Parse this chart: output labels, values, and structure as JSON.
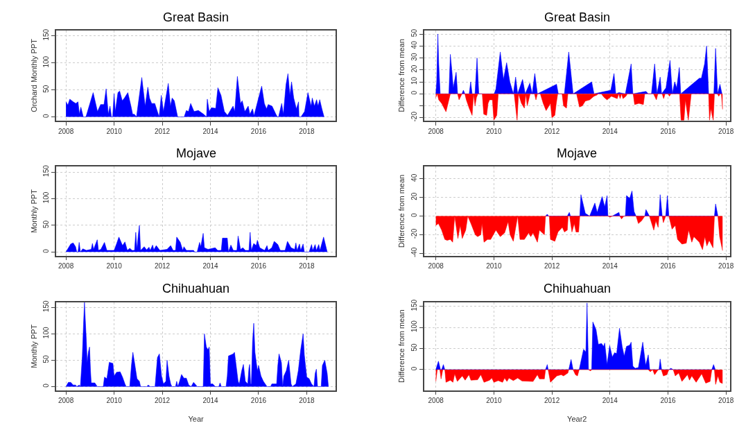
{
  "chart_data": [
    {
      "type": "area",
      "title": "Great Basin",
      "ylabel": "Orchard Monthly PPT",
      "xlim": [
        2007.6,
        2019.2
      ],
      "xticks": [
        2008,
        2010,
        2012,
        2014,
        2016,
        2018
      ],
      "ylim": [
        -7,
        160
      ],
      "yticks": [
        0,
        50,
        100,
        150
      ],
      "grid": true,
      "series": [
        {
          "color": "#0000ff",
          "x": [
            2008.0,
            2008.08,
            2008.16,
            2008.3,
            2008.41,
            2008.5,
            2008.56,
            2008.62,
            2008.72,
            2008.83,
            2009.13,
            2009.31,
            2009.44,
            2009.58,
            2009.67,
            2009.76,
            2009.83,
            2009.89,
            2009.94,
            2010.0,
            2010.05,
            2010.16,
            2010.23,
            2010.34,
            2010.43,
            2010.57,
            2010.7,
            2010.77,
            2010.84,
            2010.93,
            2011.15,
            2011.29,
            2011.4,
            2011.47,
            2011.56,
            2011.69,
            2011.87,
            2011.96,
            2012.05,
            2012.25,
            2012.34,
            2012.41,
            2012.5,
            2012.64,
            2012.91,
            2013.0,
            2013.09,
            2013.18,
            2013.32,
            2013.5,
            2013.72,
            2013.84,
            2013.87,
            2013.95,
            2014.04,
            2014.22,
            2014.31,
            2014.44,
            2014.58,
            2014.71,
            2014.94,
            2015.01,
            2015.12,
            2015.25,
            2015.32,
            2015.43,
            2015.57,
            2015.64,
            2015.75,
            2015.81,
            2015.97,
            2016.13,
            2016.24,
            2016.33,
            2016.4,
            2016.56,
            2016.72,
            2016.78,
            2016.83,
            2016.96,
            2017.03,
            2017.14,
            2017.22,
            2017.3,
            2017.37,
            2017.46,
            2017.57,
            2017.66,
            2017.68,
            2017.76,
            2017.91,
            2018.05,
            2018.18,
            2018.23,
            2018.32,
            2018.41,
            2018.47,
            2018.54,
            2018.63,
            2018.72
          ],
          "values": [
            28,
            22,
            33,
            28,
            25,
            28,
            5,
            18,
            0,
            0,
            45,
            10,
            23,
            23,
            52,
            5,
            20,
            0,
            0,
            43,
            10,
            45,
            48,
            30,
            35,
            45,
            20,
            5,
            5,
            0,
            73,
            20,
            55,
            35,
            25,
            25,
            0,
            40,
            10,
            62,
            20,
            35,
            30,
            0,
            0,
            12,
            10,
            25,
            10,
            12,
            5,
            0,
            33,
            10,
            17,
            16,
            54,
            40,
            10,
            3,
            20,
            10,
            75,
            25,
            30,
            10,
            20,
            5,
            15,
            2,
            30,
            57,
            25,
            15,
            23,
            20,
            5,
            0,
            0,
            25,
            5,
            60,
            80,
            40,
            65,
            35,
            15,
            28,
            0,
            0,
            10,
            45,
            20,
            35,
            20,
            32,
            20,
            32,
            15,
            0
          ]
        }
      ]
    },
    {
      "type": "area",
      "title": "Great Basin",
      "ylabel": "Difference from mean",
      "xlim": [
        2007.6,
        2018.13
      ],
      "xticks": [
        2008,
        2010,
        2012,
        2014,
        2016,
        2018
      ],
      "ylim": [
        -22.5,
        53
      ],
      "yticks": [
        -20,
        {
          "value": -10,
          "label": null
        },
        0,
        10,
        20,
        30,
        40,
        50
      ],
      "grid": true,
      "series": [
        {
          "color": "#0000ff",
          "x": [
            2008.0,
            2008.03,
            2008.07,
            2008.1,
            2008.15,
            2008.45,
            2008.5,
            2008.55,
            2008.6,
            2008.7,
            2008.75,
            2008.9,
            2008.95,
            2009.0,
            2009.15,
            2009.2,
            2009.25,
            2009.35,
            2009.42,
            2009.48,
            2010.01,
            2010.07,
            2010.22,
            2010.33,
            2010.44,
            2010.55,
            2010.67,
            2010.75,
            2010.82,
            2010.99,
            2011.08,
            2011.24,
            2011.32,
            2011.41,
            2011.5,
            2012.16,
            2012.22,
            2012.43,
            2012.58,
            2012.73,
            2013.37,
            2013.45,
            2014.03,
            2014.14,
            2014.2,
            2014.31,
            2014.53,
            2014.73,
            2014.79,
            2015.24,
            2015.32,
            2015.43,
            2015.54,
            2015.62,
            2015.73,
            2015.78,
            2015.93,
            2016.07,
            2016.15,
            2016.23,
            2016.3,
            2016.39,
            2016.44,
            2016.93,
            2017.08,
            2017.15,
            2017.26,
            2017.33,
            2017.4,
            2017.58,
            2017.64,
            2017.71,
            2017.79,
            2017.86
          ],
          "values": [
            0,
            10,
            50,
            25,
            0,
            0,
            33,
            20,
            5,
            18,
            0,
            0,
            3,
            0,
            0,
            10,
            0,
            0,
            30,
            0,
            0,
            4,
            35,
            12,
            26,
            10,
            0,
            14,
            0,
            12,
            0,
            9,
            0,
            17,
            0,
            8,
            0,
            0,
            35,
            0,
            10,
            0,
            3,
            17,
            0,
            1,
            0,
            25,
            0,
            2,
            0,
            0,
            25,
            0,
            14,
            0,
            5,
            28,
            0,
            10,
            5,
            22,
            0,
            10,
            13,
            13,
            25,
            40,
            0,
            0,
            38,
            0,
            8,
            0
          ]
        },
        {
          "color": "#ff0000",
          "x": [
            2008.0,
            2008.05,
            2008.1,
            2008.2,
            2008.35,
            2008.45,
            2008.5,
            2008.75,
            2008.8,
            2008.9,
            2009.0,
            2009.05,
            2009.15,
            2009.25,
            2009.3,
            2009.35,
            2009.4,
            2009.45,
            2009.6,
            2009.65,
            2009.75,
            2009.8,
            2009.85,
            2009.95,
            2010.0,
            2010.1,
            2010.15,
            2010.7,
            2010.8,
            2010.85,
            2010.95,
            2011.05,
            2011.1,
            2011.15,
            2011.2,
            2011.25,
            2011.4,
            2011.45,
            2011.5,
            2011.6,
            2011.7,
            2011.8,
            2011.95,
            2012.0,
            2012.1,
            2012.15,
            2012.2,
            2012.35,
            2012.4,
            2012.5,
            2012.55,
            2012.85,
            2012.95,
            2013.05,
            2013.15,
            2013.3,
            2013.45,
            2013.55,
            2013.6,
            2013.7,
            2013.8,
            2013.9,
            2014.05,
            2014.15,
            2014.25,
            2014.3,
            2014.35,
            2014.4,
            2014.45,
            2014.55,
            2014.6,
            2014.8,
            2014.85,
            2015.0,
            2015.15,
            2015.2,
            2015.5,
            2015.6,
            2015.65,
            2015.8,
            2015.85,
            2015.9,
            2016.0,
            2016.05,
            2016.1,
            2016.4,
            2016.45,
            2016.55,
            2016.6,
            2016.7,
            2016.8,
            2017.4,
            2017.43,
            2017.48,
            2017.52,
            2017.56,
            2017.6,
            2017.7,
            2017.75,
            2017.8,
            2017.84,
            2017.88
          ],
          "values": [
            -3,
            0,
            -5,
            -8,
            -15,
            -5,
            0,
            0,
            -5,
            0,
            0,
            -5,
            -12,
            -18,
            0,
            -10,
            -3,
            0,
            0,
            -17,
            -18,
            -8,
            -5,
            -5,
            -22,
            -18,
            0,
            0,
            -22,
            0,
            -8,
            -12,
            0,
            -10,
            -5,
            0,
            0,
            -5,
            0,
            0,
            -8,
            -14,
            -8,
            -20,
            -18,
            -8,
            0,
            0,
            -10,
            -12,
            0,
            0,
            -11,
            -10,
            -6,
            -5,
            -2,
            -1,
            0,
            0,
            -3,
            -5,
            -2,
            -3,
            -4,
            0,
            -4,
            0,
            -4,
            -2,
            0,
            0,
            -9,
            -8,
            -9,
            0,
            0,
            -5,
            0,
            0,
            -4,
            0,
            0,
            -2,
            0,
            0,
            -22,
            -22,
            -5,
            -22,
            0,
            0,
            -22,
            -12,
            -18,
            -22,
            0,
            0,
            -2,
            0,
            0,
            -13
          ]
        }
      ]
    },
    {
      "type": "area",
      "title": "Mojave",
      "ylabel": "Monthly PPT",
      "xlim": [
        2007.6,
        2019.2
      ],
      "xticks": [
        2008,
        2010,
        2012,
        2014,
        2016,
        2018
      ],
      "ylim": [
        -7,
        160
      ],
      "yticks": [
        0,
        50,
        100,
        150
      ],
      "grid": true,
      "series": [
        {
          "color": "#0000ff",
          "x": [
            2008.0,
            2008.2,
            2008.3,
            2008.4,
            2008.45,
            2008.5,
            2008.55,
            2008.6,
            2008.7,
            2008.85,
            2009.05,
            2009.1,
            2009.15,
            2009.3,
            2009.35,
            2009.45,
            2009.6,
            2009.7,
            2010.0,
            2010.1,
            2010.2,
            2010.35,
            2010.45,
            2010.55,
            2010.65,
            2010.75,
            2010.85,
            2010.9,
            2010.95,
            2011.0,
            2011.05,
            2011.1,
            2011.25,
            2011.35,
            2011.45,
            2011.5,
            2011.6,
            2011.65,
            2011.75,
            2011.9,
            2012.2,
            2012.35,
            2012.45,
            2012.55,
            2012.6,
            2012.75,
            2012.85,
            2012.9,
            2013.0,
            2013.3,
            2013.35,
            2013.45,
            2013.55,
            2013.6,
            2013.7,
            2013.75,
            2013.9,
            2014.2,
            2014.3,
            2014.45,
            2014.5,
            2014.7,
            2014.75,
            2014.85,
            2014.95,
            2015.1,
            2015.15,
            2015.25,
            2015.35,
            2015.45,
            2015.6,
            2015.65,
            2015.7,
            2015.8,
            2015.9,
            2015.95,
            2016.05,
            2016.25,
            2016.35,
            2016.4,
            2016.55,
            2016.65,
            2016.8,
            2016.9,
            2017.1,
            2017.2,
            2017.35,
            2017.5,
            2017.55,
            2017.6,
            2017.7,
            2017.75,
            2017.85,
            2017.9,
            2018.1,
            2018.2,
            2018.25,
            2018.35,
            2018.4,
            2018.5,
            2018.55,
            2018.7,
            2018.85
          ],
          "values": [
            0,
            15,
            17,
            10,
            0,
            0,
            18,
            0,
            6,
            3,
            5,
            16,
            5,
            23,
            3,
            5,
            18,
            3,
            3,
            15,
            28,
            12,
            19,
            3,
            7,
            3,
            3,
            37,
            5,
            30,
            50,
            3,
            10,
            4,
            9,
            3,
            13,
            4,
            12,
            3,
            5,
            12,
            3,
            3,
            28,
            18,
            3,
            10,
            3,
            3,
            0,
            0,
            18,
            10,
            35,
            8,
            5,
            8,
            3,
            3,
            26,
            26,
            0,
            13,
            3,
            3,
            30,
            5,
            8,
            3,
            3,
            37,
            3,
            16,
            12,
            22,
            8,
            3,
            12,
            3,
            8,
            20,
            14,
            3,
            3,
            20,
            8,
            5,
            17,
            3,
            15,
            3,
            15,
            0,
            0,
            14,
            3,
            14,
            3,
            14,
            3,
            28,
            0
          ]
        }
      ]
    },
    {
      "type": "area",
      "title": "Mojave",
      "ylabel": "Difference from mean",
      "xlim": [
        2007.6,
        2018.13
      ],
      "xticks": [
        2008,
        2010,
        2012,
        2014,
        2016,
        2018
      ],
      "ylim": [
        -42.5,
        53
      ],
      "yticks": [
        -40,
        -20,
        0,
        20,
        40
      ],
      "grid": true,
      "series": [
        {
          "color": "#0000ff",
          "x": [
            2011.78,
            2011.84,
            2011.89,
            2012.53,
            2012.6,
            2012.64,
            2012.96,
            2013.0,
            2013.15,
            2013.3,
            2013.48,
            2013.56,
            2013.73,
            2013.82,
            2013.9,
            2013.93,
            2014.08,
            2014.31,
            2014.34,
            2014.53,
            2014.57,
            2014.68,
            2014.76,
            2014.83,
            2014.9,
            2015.2,
            2015.24,
            2015.36,
            2015.69,
            2015.73,
            2015.8,
            2015.92,
            2015.98,
            2016.03,
            2017.6,
            2017.64,
            2017.72
          ],
          "values": [
            0,
            2,
            0,
            0,
            4,
            0,
            0,
            23,
            3,
            0,
            14,
            4,
            21,
            10,
            22,
            0,
            0,
            4,
            0,
            0,
            22,
            19,
            27,
            5,
            0,
            0,
            7,
            0,
            0,
            23,
            0,
            0,
            22,
            0,
            0,
            13,
            0
          ]
        },
        {
          "color": "#ff0000",
          "x": [
            2008.0,
            2008.09,
            2008.2,
            2008.31,
            2008.39,
            2008.5,
            2008.58,
            2008.65,
            2008.76,
            2008.84,
            2008.91,
            2009.03,
            2009.1,
            2009.21,
            2009.36,
            2009.44,
            2009.55,
            2009.59,
            2009.66,
            2009.78,
            2009.89,
            2010.07,
            2010.22,
            2010.37,
            2010.49,
            2010.56,
            2010.67,
            2010.82,
            2010.9,
            2011.05,
            2011.2,
            2011.27,
            2011.35,
            2011.5,
            2011.57,
            2011.74,
            2011.78,
            2011.91,
            2011.95,
            2012.1,
            2012.21,
            2012.36,
            2012.43,
            2012.53,
            2012.56,
            2012.61,
            2012.69,
            2012.77,
            2012.83,
            2012.92,
            2012.96,
            2013.93,
            2014.01,
            2014.08,
            2014.34,
            2014.4,
            2014.48,
            2014.9,
            2014.98,
            2015.09,
            2015.2,
            2015.36,
            2015.51,
            2015.58,
            2015.66,
            2015.69,
            2015.8,
            2015.84,
            2015.92,
            2016.03,
            2016.14,
            2016.25,
            2016.33,
            2016.48,
            2016.63,
            2016.71,
            2016.82,
            2016.89,
            2017.08,
            2017.19,
            2017.27,
            2017.34,
            2017.42,
            2017.55,
            2017.6,
            2017.72,
            2017.78,
            2017.88
          ],
          "values": [
            -10,
            -8,
            -15,
            -25,
            -26,
            -25,
            -28,
            0,
            -24,
            -10,
            -24,
            -15,
            0,
            -8,
            -20,
            -22,
            -20,
            -8,
            -28,
            -25,
            -25,
            -15,
            -22,
            -18,
            -6,
            -20,
            -27,
            0,
            -25,
            -25,
            -18,
            -22,
            -18,
            -28,
            -15,
            -20,
            0,
            0,
            -25,
            -27,
            -17,
            -12,
            -17,
            -15,
            0,
            0,
            -17,
            -8,
            -17,
            -17,
            0,
            0,
            -1,
            0,
            0,
            -3,
            0,
            0,
            -8,
            -5,
            0,
            0,
            -15,
            -5,
            -12,
            0,
            0,
            -7,
            0,
            0,
            -14,
            -10,
            -25,
            -30,
            -29,
            -15,
            -28,
            -22,
            -28,
            -36,
            -22,
            -32,
            -26,
            -34,
            0,
            0,
            -22,
            -37
          ]
        }
      ]
    },
    {
      "type": "area",
      "title": "Chihuahuan",
      "xlabel": "Year",
      "ylabel": "Monthly PPT",
      "xlim": [
        2007.6,
        2019.2
      ],
      "xticks": [
        2008,
        2010,
        2012,
        2014,
        2016,
        2018
      ],
      "ylim": [
        -7,
        160
      ],
      "yticks": [
        0,
        50,
        100,
        150
      ],
      "grid": true,
      "series": [
        {
          "color": "#0000ff",
          "x": [
            2008.0,
            2008.1,
            2008.2,
            2008.3,
            2008.4,
            2008.45,
            2008.55,
            2008.6,
            2008.68,
            2008.73,
            2008.77,
            2008.8,
            2008.85,
            2008.88,
            2008.93,
            2008.98,
            2009.02,
            2009.05,
            2009.2,
            2009.3,
            2009.55,
            2009.6,
            2009.7,
            2009.8,
            2009.95,
            2010.0,
            2010.1,
            2010.25,
            2010.35,
            2010.45,
            2010.5,
            2010.65,
            2010.72,
            2010.78,
            2010.85,
            2010.95,
            2011.05,
            2011.1,
            2011.35,
            2011.42,
            2011.5,
            2011.7,
            2011.8,
            2011.88,
            2011.97,
            2012.05,
            2012.15,
            2012.2,
            2012.28,
            2012.35,
            2012.4,
            2012.55,
            2012.6,
            2012.65,
            2012.72,
            2012.8,
            2012.9,
            2013.0,
            2013.1,
            2013.2,
            2013.3,
            2013.4,
            2013.45,
            2013.7,
            2013.72,
            2013.75,
            2013.83,
            2013.9,
            2013.95,
            2014.0,
            2014.1,
            2014.2,
            2014.35,
            2014.4,
            2014.45,
            2014.65,
            2014.7,
            2014.75,
            2014.95,
            2015.0,
            2015.15,
            2015.2,
            2015.3,
            2015.37,
            2015.45,
            2015.55,
            2015.6,
            2015.63,
            2015.67,
            2015.7,
            2015.75,
            2015.8,
            2015.85,
            2015.95,
            2016.0,
            2016.1,
            2016.2,
            2016.35,
            2016.5,
            2016.55,
            2016.75,
            2016.8,
            2016.85,
            2016.95,
            2017.0,
            2017.05,
            2017.15,
            2017.25,
            2017.35,
            2017.4,
            2017.55,
            2017.65,
            2017.75,
            2017.85,
            2017.9,
            2018.0,
            2018.1,
            2018.2,
            2018.3,
            2018.35,
            2018.4,
            2018.45,
            2018.6,
            2018.65,
            2018.75,
            2018.85,
            2018.9
          ],
          "values": [
            0,
            8,
            8,
            3,
            3,
            0,
            3,
            0,
            58,
            118,
            160,
            130,
            85,
            45,
            65,
            75,
            30,
            7,
            7,
            0,
            0,
            18,
            15,
            46,
            44,
            20,
            27,
            28,
            18,
            5,
            0,
            0,
            40,
            65,
            45,
            15,
            10,
            0,
            0,
            3,
            0,
            0,
            55,
            62,
            20,
            5,
            10,
            50,
            20,
            5,
            0,
            0,
            10,
            0,
            10,
            23,
            16,
            16,
            3,
            0,
            8,
            3,
            0,
            0,
            35,
            100,
            75,
            70,
            75,
            5,
            5,
            0,
            0,
            7,
            0,
            0,
            20,
            58,
            62,
            65,
            10,
            5,
            30,
            42,
            10,
            5,
            35,
            42,
            5,
            5,
            85,
            120,
            65,
            30,
            40,
            20,
            10,
            0,
            0,
            5,
            5,
            40,
            62,
            45,
            0,
            20,
            30,
            50,
            5,
            0,
            5,
            30,
            70,
            100,
            60,
            18,
            15,
            5,
            0,
            25,
            33,
            0,
            0,
            40,
            50,
            25,
            0
          ]
        }
      ]
    },
    {
      "type": "area",
      "title": "Chihuahuan",
      "xlabel": "Year2",
      "ylabel": "Difference from mean",
      "xlim": [
        2007.6,
        2018.13
      ],
      "xticks": [
        2008,
        2010,
        2012,
        2014,
        2016,
        2018
      ],
      "ylim": [
        -49,
        160
      ],
      "yticks": [
        0,
        50,
        100,
        150
      ],
      "grid": true,
      "series": [
        {
          "color": "#0000ff",
          "x": [
            2008.0,
            2008.09,
            2008.16,
            2008.2,
            2008.26,
            2008.31,
            2011.78,
            2011.84,
            2011.87,
            2012.58,
            2012.66,
            2012.73,
            2012.94,
            2013.09,
            2013.17,
            2013.21,
            2013.26,
            2013.37,
            2013.41,
            2013.52,
            2013.6,
            2013.71,
            2013.78,
            2013.82,
            2013.9,
            2013.99,
            2014.08,
            2014.16,
            2014.23,
            2014.33,
            2014.42,
            2014.49,
            2014.57,
            2014.68,
            2014.73,
            2014.79,
            2014.87,
            2014.98,
            2015.13,
            2015.23,
            2015.32,
            2015.37,
            2015.69,
            2015.73,
            2015.78,
            2016.03,
            2016.1,
            2016.18,
            2017.51,
            2017.57,
            2017.63
          ],
          "values": [
            0,
            20,
            0,
            0,
            12,
            0,
            0,
            12,
            0,
            0,
            24,
            0,
            0,
            48,
            42,
            158,
            0,
            0,
            113,
            95,
            60,
            62,
            55,
            63,
            12,
            57,
            30,
            40,
            38,
            98,
            55,
            32,
            55,
            58,
            65,
            8,
            3,
            5,
            65,
            10,
            35,
            0,
            0,
            25,
            0,
            0,
            3,
            0,
            0,
            12,
            0
          ]
        },
        {
          "color": "#ff0000",
          "x": [
            2008.0,
            2008.05,
            2008.14,
            2008.18,
            2008.24,
            2008.31,
            2008.35,
            2008.5,
            2008.59,
            2008.65,
            2008.74,
            2008.91,
            2009.01,
            2009.14,
            2009.21,
            2009.44,
            2009.55,
            2009.66,
            2009.85,
            2009.93,
            2010.0,
            2010.15,
            2010.3,
            2010.37,
            2010.45,
            2010.52,
            2010.67,
            2010.82,
            2010.97,
            2011.35,
            2011.5,
            2011.57,
            2011.74,
            2011.78,
            2011.87,
            2011.95,
            2012.17,
            2012.32,
            2012.4,
            2012.55,
            2012.58,
            2012.73,
            2012.81,
            2012.88,
            2012.94,
            2013.26,
            2013.33,
            2013.37,
            2015.32,
            2015.39,
            2015.47,
            2015.54,
            2015.66,
            2015.77,
            2015.84,
            2015.96,
            2016.03,
            2016.18,
            2016.25,
            2016.37,
            2016.48,
            2016.67,
            2016.74,
            2016.82,
            2016.97,
            2017.16,
            2017.3,
            2017.45,
            2017.51,
            2017.6,
            2017.64,
            2017.72,
            2017.79,
            2017.88
          ],
          "values": [
            -28,
            0,
            0,
            -22,
            0,
            0,
            -30,
            -25,
            -30,
            -10,
            -28,
            -15,
            -25,
            -12,
            -25,
            -24,
            -12,
            -30,
            -25,
            -20,
            -30,
            -26,
            -30,
            -20,
            -28,
            -20,
            -26,
            -20,
            -27,
            -28,
            -12,
            -22,
            -22,
            0,
            0,
            -30,
            -15,
            -12,
            -15,
            -8,
            0,
            0,
            -12,
            -15,
            0,
            0,
            -3,
            0,
            0,
            -5,
            0,
            -12,
            0,
            0,
            -15,
            -12,
            0,
            0,
            -15,
            -8,
            -28,
            -12,
            -25,
            -15,
            -30,
            -10,
            -32,
            -28,
            0,
            0,
            -35,
            -15,
            -30,
            -33
          ]
        }
      ]
    }
  ]
}
